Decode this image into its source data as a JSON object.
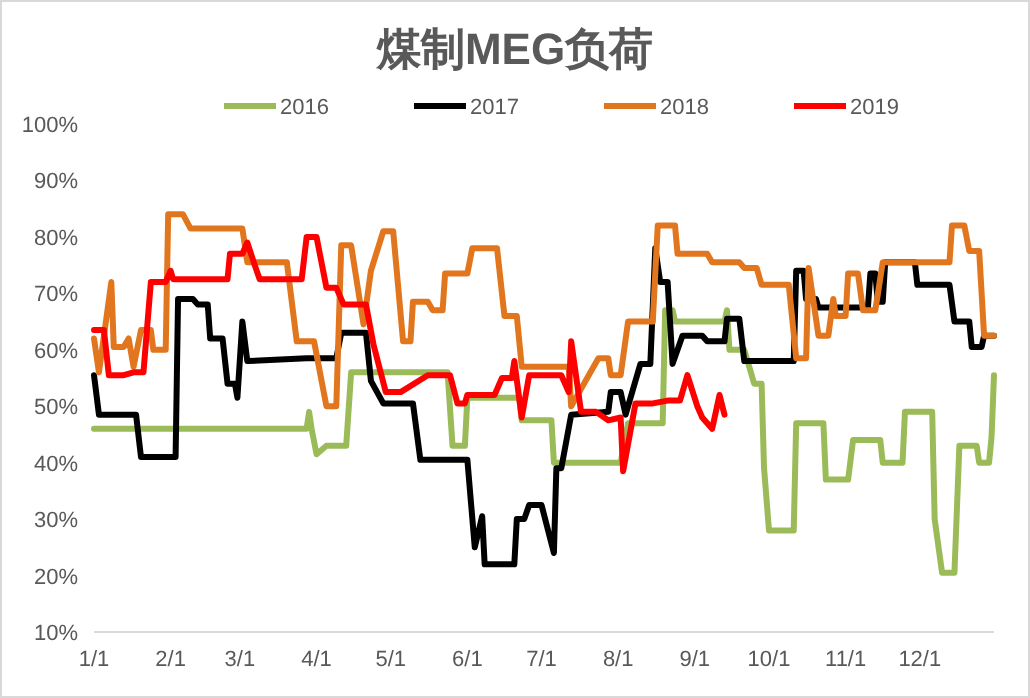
{
  "chart_data": {
    "type": "line",
    "title": "煤制MEG负荷",
    "legend": "top",
    "line_style": "solid",
    "marker": "none",
    "xlim": [
      "--01-01",
      "--12-31"
    ],
    "xticks": [
      {
        "value": "--01-01",
        "label": "1/1"
      },
      {
        "value": "--02-01",
        "label": "2/1"
      },
      {
        "value": "--03-01",
        "label": "3/1"
      },
      {
        "value": "--04-01",
        "label": "4/1"
      },
      {
        "value": "--05-01",
        "label": "5/1"
      },
      {
        "value": "--06-01",
        "label": "6/1"
      },
      {
        "value": "--07-01",
        "label": "7/1"
      },
      {
        "value": "--08-01",
        "label": "8/1"
      },
      {
        "value": "--09-01",
        "label": "9/1"
      },
      {
        "value": "--10-01",
        "label": "10/1"
      },
      {
        "value": "--11-01",
        "label": "11/1"
      },
      {
        "value": "--12-01",
        "label": "12/1"
      }
    ],
    "ylim": [
      10,
      100
    ],
    "yticks": [
      {
        "value": 10,
        "label": "10%"
      },
      {
        "value": 20,
        "label": "20%"
      },
      {
        "value": 30,
        "label": "30%"
      },
      {
        "value": 40,
        "label": "40%"
      },
      {
        "value": 50,
        "label": "50%"
      },
      {
        "value": 60,
        "label": "60%"
      },
      {
        "value": 70,
        "label": "70%"
      },
      {
        "value": 80,
        "label": "80%"
      },
      {
        "value": 90,
        "label": "90%"
      },
      {
        "value": 100,
        "label": "100%"
      }
    ],
    "series": [
      {
        "name": "2016",
        "color": "#9bbb59",
        "x": [
          "--01-01",
          "--03-28",
          "--03-29",
          "--03-30",
          "--04-01",
          "--04-05",
          "--04-13",
          "--04-15",
          "--05-24",
          "--05-26",
          "--05-31",
          "--06-01",
          "--06-22",
          "--06-23",
          "--07-05",
          "--07-06",
          "--08-02",
          "--08-05",
          "--08-19",
          "--08-20",
          "--08-23",
          "--08-24",
          "--09-13",
          "--09-14",
          "--09-15",
          "--09-21",
          "--09-25",
          "--09-28",
          "--09-29",
          "--10-01",
          "--10-11",
          "--10-12",
          "--10-23",
          "--10-24",
          "--11-02",
          "--11-04",
          "--11-15",
          "--11-16",
          "--11-24",
          "--11-25",
          "--12-06",
          "--12-07",
          "--12-10",
          "--12-15",
          "--12-17",
          "--12-24",
          "--12-25",
          "--12-29",
          "--12-30",
          "--12-31"
        ],
        "values": [
          46,
          46,
          49,
          46,
          41.5,
          43,
          43,
          56,
          56,
          43,
          43,
          51.5,
          51.5,
          47.5,
          47.5,
          40,
          40,
          47,
          47,
          67,
          67,
          65,
          65,
          67,
          60,
          60,
          54,
          54,
          39,
          28,
          28,
          47,
          47,
          37,
          37,
          44,
          44,
          40,
          40,
          49,
          49,
          30,
          20.5,
          20.5,
          43,
          43,
          40,
          40,
          44.5,
          55.5
        ]
      },
      {
        "name": "2017",
        "color": "#000000",
        "x": [
          "--01-01",
          "--01-03",
          "--01-18",
          "--01-20",
          "--02-03",
          "--02-04",
          "--02-10",
          "--02-12",
          "--02-16",
          "--02-17",
          "--02-22",
          "--02-24",
          "--02-27",
          "--02-28",
          "--03-02",
          "--03-04",
          "--03-28",
          "--04-09",
          "--04-11",
          "--04-21",
          "--04-23",
          "--04-28",
          "--05-10",
          "--05-13",
          "--06-01",
          "--06-04",
          "--06-07",
          "--06-08",
          "--06-20",
          "--06-21",
          "--06-24",
          "--06-26",
          "--07-01",
          "--07-06",
          "--07-07",
          "--07-09",
          "--07-13",
          "--07-28",
          "--07-29",
          "--08-02",
          "--08-04",
          "--08-10",
          "--08-14",
          "--08-16",
          "--08-18",
          "--08-21",
          "--08-23",
          "--08-27",
          "--09-04",
          "--09-06",
          "--09-13",
          "--09-14",
          "--09-19",
          "--09-21",
          "--10-11",
          "--10-12",
          "--10-15",
          "--10-16",
          "--10-20",
          "--10-21",
          "--11-10",
          "--11-11",
          "--11-13",
          "--11-14",
          "--11-16",
          "--11-17",
          "--11-29",
          "--11-30",
          "--12-13",
          "--12-15",
          "--12-21",
          "--12-22",
          "--12-26",
          "--12-27",
          "--12-31"
        ],
        "values": [
          55.5,
          48.5,
          48.5,
          41,
          41,
          69,
          69,
          68,
          68,
          62,
          62,
          54,
          54,
          51.5,
          65,
          58,
          58.5,
          58.5,
          63,
          63,
          54.5,
          50.5,
          50.5,
          40.5,
          40.5,
          25,
          30.5,
          22,
          22,
          30,
          30,
          32.5,
          32.5,
          24,
          39,
          39,
          48.5,
          49,
          52.5,
          52.5,
          48.5,
          57.5,
          57.5,
          78,
          72,
          72,
          57.5,
          62.5,
          62.5,
          61.5,
          61.5,
          65.5,
          65.5,
          58,
          58,
          74,
          74,
          69,
          69,
          67.5,
          67.5,
          73.5,
          73.5,
          68.5,
          68.5,
          75.5,
          75.5,
          71.5,
          71.5,
          65,
          65,
          60.5,
          60.5,
          62.5,
          62.5
        ]
      },
      {
        "name": "2018",
        "color": "#e2761e",
        "x": [
          "--01-01",
          "--01-03",
          "--01-08",
          "--01-09",
          "--01-13",
          "--01-15",
          "--01-17",
          "--01-20",
          "--01-24",
          "--01-25",
          "--01-30",
          "--01-31",
          "--02-06",
          "--02-09",
          "--03-02",
          "--03-04",
          "--03-20",
          "--03-22",
          "--03-24",
          "--03-31",
          "--04-05",
          "--04-09",
          "--04-11",
          "--04-15",
          "--04-20",
          "--04-23",
          "--04-28",
          "--05-02",
          "--05-06",
          "--05-09",
          "--05-10",
          "--05-16",
          "--05-18",
          "--05-22",
          "--05-23",
          "--06-01",
          "--06-03",
          "--06-13",
          "--06-16",
          "--06-21",
          "--06-23",
          "--07-12",
          "--07-13",
          "--07-24",
          "--07-28",
          "--07-29",
          "--08-02",
          "--08-05",
          "--08-15",
          "--08-17",
          "--08-24",
          "--08-25",
          "--09-06",
          "--09-08",
          "--09-19",
          "--09-21",
          "--09-26",
          "--09-28",
          "--10-09",
          "--10-12",
          "--10-16",
          "--10-17",
          "--10-21",
          "--10-25",
          "--10-27",
          "--10-28",
          "--11-01",
          "--11-02",
          "--11-06",
          "--11-08",
          "--11-13",
          "--11-16",
          "--12-13",
          "--12-14",
          "--12-19",
          "--12-21",
          "--12-25",
          "--12-27",
          "--12-31"
        ],
        "values": [
          62,
          56,
          72,
          60.5,
          60.5,
          62,
          57,
          63.5,
          63.5,
          60,
          60,
          84,
          84,
          81.5,
          81.5,
          75.5,
          75.5,
          68.5,
          61.5,
          61.5,
          50,
          50,
          78.5,
          78.5,
          64.5,
          74,
          81,
          81,
          61.5,
          61.5,
          68.5,
          68.5,
          67,
          67,
          73.5,
          73.5,
          78,
          78,
          66,
          66,
          57,
          57,
          50,
          58.5,
          58.5,
          55.5,
          55.5,
          65,
          65,
          82,
          82,
          77,
          77,
          75.5,
          75.5,
          74.5,
          74.5,
          71.5,
          71.5,
          58.5,
          58.5,
          74.5,
          62.5,
          62.5,
          69,
          66,
          66,
          73.5,
          73.5,
          67,
          67,
          75.5,
          75.5,
          82,
          82,
          77.5,
          77.5,
          62.5,
          62.5
        ]
      },
      {
        "name": "2019",
        "color": "#ff0000",
        "x": [
          "--01-01",
          "--01-05",
          "--01-07",
          "--01-13",
          "--01-17",
          "--01-21",
          "--01-24",
          "--01-30",
          "--02-01",
          "--02-02",
          "--02-24",
          "--02-25",
          "--03-02",
          "--03-04",
          "--03-07",
          "--03-09",
          "--03-26",
          "--03-28",
          "--04-01",
          "--04-05",
          "--04-09",
          "--04-12",
          "--04-21",
          "--04-24",
          "--04-29",
          "--05-05",
          "--05-16",
          "--05-25",
          "--05-28",
          "--05-31",
          "--06-01",
          "--06-12",
          "--06-15",
          "--06-19",
          "--06-20",
          "--06-23",
          "--06-26",
          "--07-09",
          "--07-12",
          "--07-13",
          "--07-17",
          "--07-23",
          "--07-28",
          "--08-02",
          "--08-03",
          "--08-08",
          "--08-15",
          "--08-21",
          "--08-26",
          "--08-29",
          "--09-02",
          "--09-04",
          "--09-08",
          "--09-11",
          "--09-13"
        ],
        "values": [
          63.5,
          63.5,
          55.5,
          55.5,
          56,
          56,
          72,
          72,
          74,
          72.5,
          72.5,
          77,
          77,
          79,
          75,
          72.5,
          72.5,
          80,
          80,
          71,
          71,
          68,
          68,
          61,
          52.5,
          52.5,
          55.5,
          55.5,
          50.5,
          50.5,
          52,
          52,
          55,
          55,
          58,
          48,
          55.5,
          55.5,
          52.5,
          61.5,
          49,
          49,
          47.5,
          48,
          38.5,
          50.5,
          50.5,
          51,
          51,
          55.5,
          50,
          48,
          46,
          52,
          48.5
        ]
      }
    ]
  }
}
